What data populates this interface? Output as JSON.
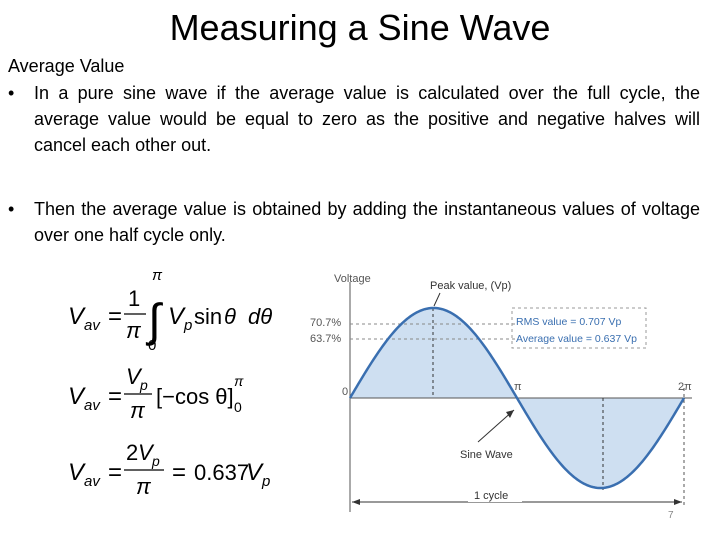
{
  "slide": {
    "title": "Measuring a Sine Wave",
    "subheading": "Average Value",
    "bullets": [
      "In a pure sine wave if the average value is calculated over the full cycle, the average value would be equal to zero as the positive and negative halves will cancel each other out.",
      "Then the average value is obtained by adding the instantaneous values of voltage over one half cycle only."
    ],
    "bullet_symbol": "•",
    "slide_number": "7"
  },
  "equations": {
    "lhs_var": "V",
    "lhs_sub": "av",
    "eq1": {
      "one": "1",
      "pi": "π",
      "upper": "π",
      "lower": "0",
      "integral": "∫",
      "vp": "V",
      "vp_sub": "p",
      "sin": "sin",
      "theta": "θ",
      "dtheta": "dθ"
    },
    "eq2": {
      "vp": "V",
      "vp_sub": "p",
      "pi": "π",
      "bracket": "[−cos θ]",
      "upper": "π",
      "lower": "0"
    },
    "eq3": {
      "two": "2",
      "vp": "V",
      "vp_sub": "p",
      "pi": "π",
      "result": "0.637",
      "res_vp": "V",
      "res_sub": "p"
    },
    "equals": "="
  },
  "figure": {
    "y_axis_label": "Voltage",
    "peak_label": "Peak value, (Vp)",
    "rms_percent": "70.7%",
    "avg_percent": "63.7%",
    "zero_label": "0",
    "pi_label": "π",
    "two_pi_label": "2π",
    "rms_box_label": "RMS value = 0.707 Vp",
    "avg_box_label": "Average value = 0.637 Vp",
    "sine_label": "Sine Wave",
    "cycle_label": "1 cycle",
    "colors": {
      "wave": "#3a6fb0",
      "fill": "#c9dbef",
      "dashed": "#888888",
      "box_text": "#3a6fb0",
      "rms_text": "#3a6fb0"
    }
  }
}
